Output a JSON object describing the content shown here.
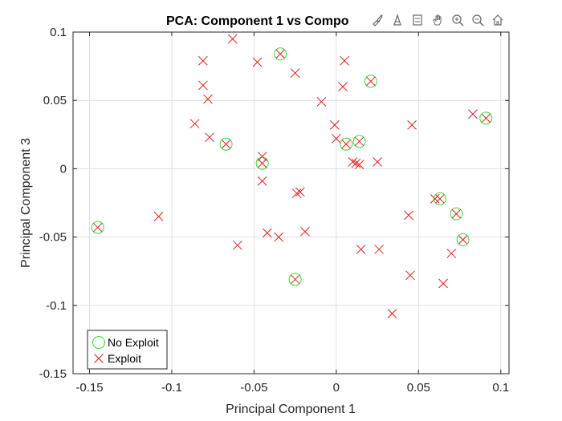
{
  "chart_data": {
    "type": "scatter",
    "title": "PCA: Component 1 vs Compo",
    "xlabel": "Principal Component 1",
    "ylabel": "Principal Component 3",
    "xlim": [
      -0.16,
      0.105
    ],
    "ylim": [
      -0.15,
      0.1
    ],
    "xticks": [
      -0.15,
      -0.1,
      -0.05,
      0,
      0.05,
      0.1
    ],
    "xtick_labels": [
      "-0.15",
      "-0.1",
      "-0.05",
      "0",
      "0.05",
      "0.1"
    ],
    "yticks": [
      -0.15,
      -0.1,
      -0.05,
      0,
      0.05,
      0.1
    ],
    "ytick_labels": [
      "-0.15",
      "-0.1",
      "-0.05",
      "0",
      "0.05",
      "0.1"
    ],
    "grid": true,
    "legend_position": "bottom-left",
    "series": [
      {
        "name": "No Exploit",
        "marker": "circle",
        "color": "#33dd33",
        "points": [
          [
            -0.145,
            -0.043
          ],
          [
            -0.067,
            0.018
          ],
          [
            -0.045,
            0.004
          ],
          [
            -0.034,
            0.084
          ],
          [
            -0.025,
            -0.081
          ],
          [
            0.006,
            0.018
          ],
          [
            0.014,
            0.02
          ],
          [
            0.021,
            0.064
          ],
          [
            0.063,
            -0.022
          ],
          [
            0.073,
            -0.033
          ],
          [
            0.077,
            -0.052
          ],
          [
            0.091,
            0.037
          ]
        ]
      },
      {
        "name": "Exploit",
        "marker": "x",
        "color": "#dd2222",
        "points": [
          [
            -0.145,
            -0.043
          ],
          [
            -0.108,
            -0.035
          ],
          [
            -0.086,
            0.033
          ],
          [
            -0.081,
            0.079
          ],
          [
            -0.081,
            0.061
          ],
          [
            -0.078,
            0.051
          ],
          [
            -0.077,
            0.023
          ],
          [
            -0.067,
            0.018
          ],
          [
            -0.063,
            0.095
          ],
          [
            -0.06,
            -0.056
          ],
          [
            -0.048,
            0.078
          ],
          [
            -0.045,
            0.009
          ],
          [
            -0.045,
            -0.009
          ],
          [
            -0.045,
            0.004
          ],
          [
            -0.042,
            -0.047
          ],
          [
            -0.035,
            -0.05
          ],
          [
            -0.034,
            0.084
          ],
          [
            -0.025,
            0.07
          ],
          [
            -0.024,
            -0.018
          ],
          [
            -0.022,
            -0.017
          ],
          [
            -0.025,
            -0.081
          ],
          [
            -0.019,
            -0.046
          ],
          [
            -0.009,
            0.049
          ],
          [
            -0.001,
            0.032
          ],
          [
            0.0,
            0.022
          ],
          [
            0.004,
            0.06
          ],
          [
            0.005,
            0.079
          ],
          [
            0.006,
            0.018
          ],
          [
            0.01,
            0.005
          ],
          [
            0.012,
            0.004
          ],
          [
            0.014,
            0.003
          ],
          [
            0.014,
            0.02
          ],
          [
            0.015,
            -0.059
          ],
          [
            0.021,
            0.064
          ],
          [
            0.025,
            0.005
          ],
          [
            0.026,
            -0.059
          ],
          [
            0.034,
            -0.106
          ],
          [
            0.044,
            -0.034
          ],
          [
            0.045,
            -0.078
          ],
          [
            0.046,
            0.032
          ],
          [
            0.06,
            -0.022
          ],
          [
            0.063,
            -0.022
          ],
          [
            0.065,
            -0.084
          ],
          [
            0.07,
            -0.062
          ],
          [
            0.073,
            -0.033
          ],
          [
            0.077,
            -0.052
          ],
          [
            0.083,
            0.04
          ],
          [
            0.091,
            0.037
          ]
        ]
      }
    ]
  },
  "toolbar": {
    "icons": [
      "brush-icon",
      "data-cursor-icon",
      "legend-icon",
      "pan-icon",
      "zoom-in-icon",
      "zoom-out-icon",
      "home-icon"
    ]
  }
}
